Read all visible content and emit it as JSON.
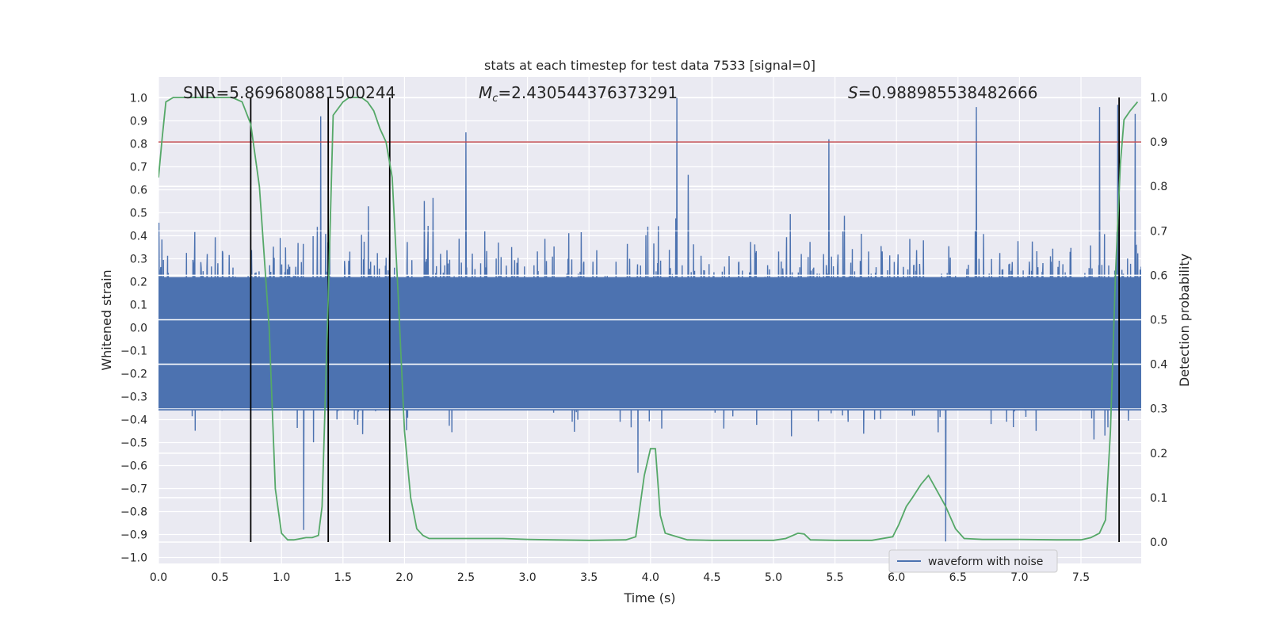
{
  "chart_data": {
    "type": "line",
    "title": "stats at each timestep for test data 7533 [signal=0]",
    "xlabel": "Time (s)",
    "ylabel": "Whitened strain",
    "y2label": "Detection probability",
    "xlim": [
      0.0,
      8.0
    ],
    "ylim": [
      -1.05,
      1.05
    ],
    "y2lim": [
      -0.03,
      1.03
    ],
    "xticks": [
      "0.0",
      "0.5",
      "1.0",
      "1.5",
      "2.0",
      "2.5",
      "3.0",
      "3.5",
      "4.0",
      "4.5",
      "5.0",
      "5.5",
      "6.0",
      "6.5",
      "7.0",
      "7.5"
    ],
    "yticks": [
      "1.0",
      "0.9",
      "0.8",
      "0.7",
      "0.6",
      "0.5",
      "0.4",
      "0.3",
      "0.2",
      "0.1",
      "0.0",
      "−0.1",
      "−0.2",
      "−0.3",
      "−0.4",
      "−0.5",
      "−0.6",
      "−0.7",
      "−0.8",
      "−0.9",
      "−1.0"
    ],
    "y2ticks": [
      "1.0",
      "0.9",
      "0.8",
      "0.7",
      "0.6",
      "0.5",
      "0.4",
      "0.3",
      "0.2",
      "0.1",
      "0.0"
    ],
    "grid": true,
    "legend_position": "lower-right",
    "annotations": {
      "snr": "SNR=5.869680881500244",
      "mc_symbol": "M",
      "mc_subscript": "c",
      "mc_value": "=2.430544376373291",
      "s_symbol": "S",
      "s_value": "=0.988985538482666"
    },
    "colors": {
      "waveform": "#4c72b0",
      "probability": "#55a868",
      "threshold": "#c44e52",
      "marker": "#000000",
      "axes_bg": "#eaeaf2",
      "grid": "#ffffff"
    },
    "threshold_probability": 0.9,
    "vertical_markers": [
      0.75,
      1.38,
      1.88,
      7.81
    ],
    "series": [
      {
        "name": "waveform with noise",
        "kind": "noise-strain",
        "amplitude_range": [
          -0.95,
          1.0
        ],
        "notable_peaks": [
          {
            "x": 1.32,
            "y": 0.92
          },
          {
            "x": 1.18,
            "y": -0.88
          },
          {
            "x": 2.5,
            "y": 0.85
          },
          {
            "x": 5.45,
            "y": 0.82
          },
          {
            "x": 6.4,
            "y": -0.93
          },
          {
            "x": 6.65,
            "y": 0.96
          },
          {
            "x": 7.65,
            "y": 0.96
          },
          {
            "x": 7.8,
            "y": 0.97
          },
          {
            "x": 7.94,
            "y": 0.93
          }
        ]
      },
      {
        "name": "",
        "kind": "detection-probability",
        "x": [
          0.0,
          0.03,
          0.06,
          0.12,
          0.2,
          0.3,
          0.4,
          0.5,
          0.6,
          0.68,
          0.75,
          0.82,
          0.9,
          0.95,
          1.0,
          1.05,
          1.1,
          1.2,
          1.25,
          1.3,
          1.33,
          1.38,
          1.42,
          1.5,
          1.55,
          1.6,
          1.65,
          1.7,
          1.75,
          1.8,
          1.85,
          1.9,
          1.95,
          2.0,
          2.05,
          2.1,
          2.15,
          2.2,
          2.3,
          2.4,
          2.6,
          2.8,
          3.0,
          3.2,
          3.5,
          3.8,
          3.88,
          3.95,
          4.0,
          4.04,
          4.08,
          4.12,
          4.18,
          4.3,
          4.5,
          4.8,
          5.0,
          5.1,
          5.2,
          5.25,
          5.3,
          5.5,
          5.8,
          5.97,
          6.02,
          6.08,
          6.13,
          6.2,
          6.26,
          6.32,
          6.4,
          6.48,
          6.55,
          6.7,
          7.0,
          7.3,
          7.5,
          7.58,
          7.65,
          7.7,
          7.74,
          7.78,
          7.82,
          7.85,
          7.9,
          7.96
        ],
        "values": [
          0.82,
          0.91,
          0.99,
          1.0,
          1.0,
          1.0,
          1.0,
          1.0,
          1.0,
          0.99,
          0.94,
          0.8,
          0.48,
          0.12,
          0.02,
          0.005,
          0.005,
          0.01,
          0.01,
          0.015,
          0.08,
          0.55,
          0.96,
          0.99,
          1.0,
          1.0,
          1.0,
          0.99,
          0.97,
          0.93,
          0.9,
          0.82,
          0.55,
          0.25,
          0.1,
          0.03,
          0.015,
          0.008,
          0.008,
          0.008,
          0.008,
          0.008,
          0.006,
          0.005,
          0.004,
          0.005,
          0.012,
          0.15,
          0.21,
          0.21,
          0.06,
          0.02,
          0.015,
          0.005,
          0.004,
          0.004,
          0.004,
          0.008,
          0.02,
          0.018,
          0.005,
          0.004,
          0.004,
          0.012,
          0.04,
          0.08,
          0.1,
          0.13,
          0.15,
          0.12,
          0.08,
          0.03,
          0.008,
          0.006,
          0.006,
          0.005,
          0.005,
          0.01,
          0.02,
          0.05,
          0.25,
          0.6,
          0.85,
          0.95,
          0.97,
          0.99
        ]
      }
    ]
  }
}
